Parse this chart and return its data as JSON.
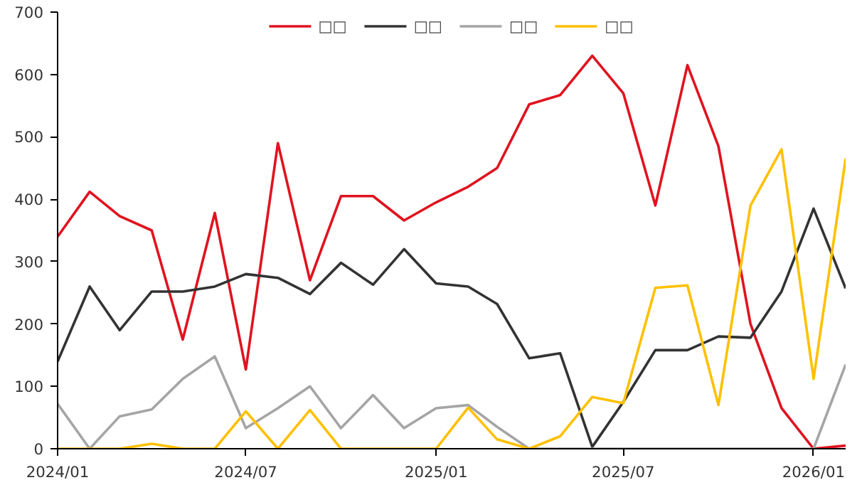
{
  "chart_data": {
    "type": "line",
    "x": [
      "2024-01",
      "2024-02",
      "2024-03",
      "2024-04",
      "2024-05",
      "2024-06",
      "2024-07",
      "2024-08",
      "2024-09",
      "2024-10",
      "2024-11",
      "2024-12",
      "2025-01",
      "2025-02",
      "2025-03",
      "2025-04",
      "2025-05",
      "2025-06",
      "2025-07",
      "2025-08",
      "2025-09",
      "2025-10",
      "2025-11",
      "2025-12",
      "2026-01",
      "2026-02"
    ],
    "series": [
      {
        "name": "□□",
        "color": "#e0131f",
        "values": [
          340,
          412,
          373,
          350,
          175,
          378,
          127,
          490,
          270,
          405,
          405,
          366,
          395,
          420,
          450,
          552,
          567,
          630,
          570,
          390,
          615,
          485,
          200,
          65,
          0,
          5
        ]
      },
      {
        "name": "□□",
        "color": "#333333",
        "values": [
          140,
          260,
          190,
          252,
          252,
          260,
          280,
          274,
          248,
          298,
          263,
          320,
          265,
          260,
          232,
          145,
          153,
          3,
          75,
          158,
          158,
          180,
          178,
          252,
          385,
          257
        ]
      },
      {
        "name": "□□",
        "color": "#a5a5a5",
        "values": [
          72,
          0,
          52,
          63,
          112,
          148,
          33,
          65,
          100,
          33,
          86,
          33,
          65,
          70,
          35,
          0,
          0,
          0,
          0,
          0,
          0,
          0,
          0,
          0,
          0,
          135
        ]
      },
      {
        "name": "□□",
        "color": "#ffc000",
        "values": [
          0,
          0,
          0,
          8,
          0,
          0,
          60,
          0,
          62,
          0,
          0,
          0,
          0,
          66,
          15,
          0,
          20,
          83,
          73,
          258,
          262,
          70,
          390,
          480,
          112,
          465
        ]
      }
    ],
    "xlim": [
      "2024-01",
      "2026-02"
    ],
    "xticks": [
      {
        "value": "2024-01",
        "label": "2024/01"
      },
      {
        "value": "2024-07",
        "label": "2024/07"
      },
      {
        "value": "2025-01",
        "label": "2025/01"
      },
      {
        "value": "2025-07",
        "label": "2025/07"
      },
      {
        "value": "2026-01",
        "label": "2026/01"
      }
    ],
    "ylim": [
      0,
      700
    ],
    "yticks": [
      0,
      100,
      200,
      300,
      400,
      500,
      600,
      700
    ],
    "legend": "top",
    "grid": false,
    "marker": "none",
    "line_style": "solid"
  }
}
